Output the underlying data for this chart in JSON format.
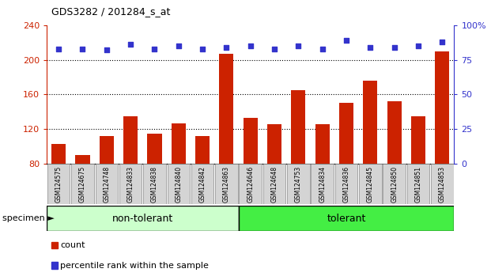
{
  "title": "GDS3282 / 201284_s_at",
  "categories": [
    "GSM124575",
    "GSM124675",
    "GSM124748",
    "GSM124833",
    "GSM124838",
    "GSM124840",
    "GSM124842",
    "GSM124863",
    "GSM124646",
    "GSM124648",
    "GSM124753",
    "GSM124834",
    "GSM124836",
    "GSM124845",
    "GSM124850",
    "GSM124851",
    "GSM124853"
  ],
  "bar_values": [
    103,
    90,
    112,
    135,
    115,
    127,
    112,
    207,
    133,
    126,
    165,
    126,
    150,
    176,
    152,
    135,
    210
  ],
  "dot_pct": [
    83,
    83,
    82,
    86,
    83,
    85,
    83,
    84,
    85,
    83,
    85,
    83,
    89,
    84,
    84,
    85,
    88
  ],
  "bar_color": "#cc2200",
  "dot_color": "#3333cc",
  "ylim_left": [
    80,
    240
  ],
  "ylim_right": [
    0,
    100
  ],
  "yticks_left": [
    80,
    120,
    160,
    200,
    240
  ],
  "yticks_right": [
    0,
    25,
    50,
    75,
    100
  ],
  "group1_label": "non-tolerant",
  "group2_label": "tolerant",
  "group1_count": 8,
  "group1_color": "#ccffcc",
  "group2_color": "#44ee44",
  "specimen_label": "specimen",
  "legend_count": "count",
  "legend_pct": "percentile rank within the sample"
}
